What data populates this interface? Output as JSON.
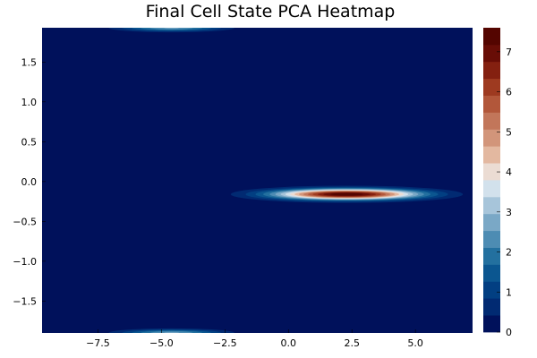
{
  "chart_data": {
    "type": "heatmap",
    "title": "Final Cell State PCA Heatmap",
    "xlabel": "",
    "ylabel": "",
    "xlim": [
      -9.7,
      7.25
    ],
    "ylim": [
      -1.9,
      1.93
    ],
    "x_ticks": [
      -7.5,
      -5.0,
      -2.5,
      0.0,
      2.5,
      5.0
    ],
    "x_tick_labels": [
      "−7.5",
      "−5.0",
      "−2.5",
      "0.0",
      "2.5",
      "5.0"
    ],
    "y_ticks": [
      1.5,
      1.0,
      0.5,
      0.0,
      -0.5,
      -1.0,
      -1.5
    ],
    "y_tick_labels": [
      "1.5",
      "1.0",
      "0.5",
      "0.0",
      "−0.5",
      "−1.0",
      "−1.5"
    ],
    "colorbar": {
      "min": 0,
      "max": 7.6,
      "ticks": [
        0,
        1,
        2,
        3,
        4,
        5,
        6,
        7
      ],
      "tick_labels": [
        "0",
        "1",
        "2",
        "3",
        "4",
        "5",
        "6",
        "7"
      ],
      "colors": [
        "#00115b",
        "#012a72",
        "#023f82",
        "#0b5690",
        "#23709f",
        "#4d8cb3",
        "#7aa8c6",
        "#a7c5da",
        "#d2e1ec",
        "#ebdcd3",
        "#e3b8a0",
        "#d2957a",
        "#c2765a",
        "#b2573a",
        "#9e3a20",
        "#842010",
        "#680d06",
        "#540500"
      ]
    },
    "hotspots": [
      {
        "x": 2.3,
        "y": -0.16,
        "peak": 7.6,
        "sx": 1.9,
        "sy": 0.045
      },
      {
        "x": -4.6,
        "y": 1.93,
        "peak": 2.6,
        "sx": 1.3,
        "sy": 0.03
      },
      {
        "x": -4.6,
        "y": -1.9,
        "peak": 2.6,
        "sx": 1.3,
        "sy": 0.03
      }
    ]
  }
}
